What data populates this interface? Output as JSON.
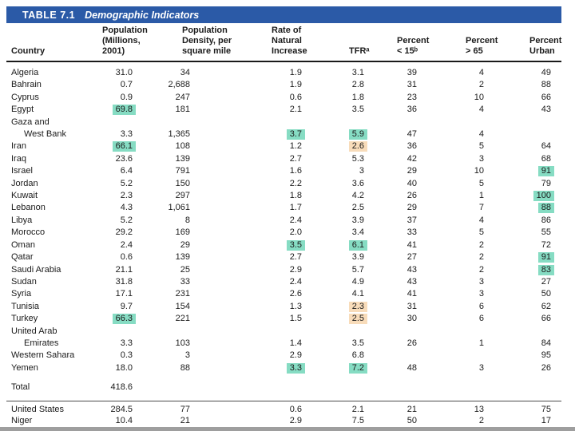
{
  "title_bar": {
    "label": "TABLE 7.1",
    "title": "Demographic Indicators"
  },
  "columns": [
    {
      "label": "Country"
    },
    {
      "label": "Population\n(Millions,\n2001)"
    },
    {
      "label": "Population\nDensity, per\nsquare mile"
    },
    {
      "label": "Rate of\nNatural\nIncrease"
    },
    {
      "label": "TFRᵃ"
    },
    {
      "label": "Percent\n< 15ᵇ"
    },
    {
      "label": "Percent\n> 65"
    },
    {
      "label": "Percent\nUrban"
    }
  ],
  "rows": [
    {
      "country": "Algeria",
      "cells": [
        "31.0",
        "34",
        "1.9",
        "3.1",
        "39",
        "4",
        "49"
      ]
    },
    {
      "country": "Bahrain",
      "cells": [
        "0.7",
        "2,688",
        "1.9",
        "2.8",
        "31",
        "2",
        "88"
      ]
    },
    {
      "country": "Cyprus",
      "cells": [
        "0.9",
        "247",
        "0.6",
        "1.8",
        "23",
        "10",
        "66"
      ]
    },
    {
      "country": "Egypt",
      "cells": [
        {
          "v": "69.8",
          "hl": "teal"
        },
        "181",
        "2.1",
        "3.5",
        "36",
        "4",
        "43"
      ]
    },
    {
      "country": "Gaza and",
      "cells": null
    },
    {
      "country": "West Bank",
      "indent": true,
      "cells": [
        "3.3",
        "1,365",
        {
          "v": "3.7",
          "hl": "teal"
        },
        {
          "v": "5.9",
          "hl": "teal"
        },
        "47",
        "4",
        ""
      ]
    },
    {
      "country": "Iran",
      "cells": [
        {
          "v": "66.1",
          "hl": "teal"
        },
        "108",
        "1.2",
        {
          "v": "2.6",
          "hl": "orange"
        },
        "36",
        "5",
        "64"
      ]
    },
    {
      "country": "Iraq",
      "cells": [
        "23.6",
        "139",
        "2.7",
        "5.3",
        "42",
        "3",
        "68"
      ]
    },
    {
      "country": "Israel",
      "cells": [
        "6.4",
        "791",
        "1.6",
        "3",
        "29",
        "10",
        {
          "v": "91",
          "hl": "teal"
        }
      ]
    },
    {
      "country": "Jordan",
      "cells": [
        "5.2",
        "150",
        "2.2",
        "3.6",
        "40",
        "5",
        "79"
      ]
    },
    {
      "country": "Kuwait",
      "cells": [
        "2.3",
        "297",
        "1.8",
        "4.2",
        "26",
        "1",
        {
          "v": "100",
          "hl": "teal"
        }
      ]
    },
    {
      "country": "Lebanon",
      "cells": [
        "4.3",
        "1,061",
        "1.7",
        "2.5",
        "29",
        "7",
        {
          "v": "88",
          "hl": "teal"
        }
      ]
    },
    {
      "country": "Libya",
      "cells": [
        "5.2",
        "8",
        "2.4",
        "3.9",
        "37",
        "4",
        "86"
      ]
    },
    {
      "country": "Morocco",
      "cells": [
        "29.2",
        "169",
        "2.0",
        "3.4",
        "33",
        "5",
        "55"
      ]
    },
    {
      "country": "Oman",
      "cells": [
        "2.4",
        "29",
        {
          "v": "3.5",
          "hl": "teal"
        },
        {
          "v": "6.1",
          "hl": "teal"
        },
        "41",
        "2",
        "72"
      ]
    },
    {
      "country": "Qatar",
      "cells": [
        "0.6",
        "139",
        "2.7",
        "3.9",
        "27",
        "2",
        {
          "v": "91",
          "hl": "teal"
        }
      ]
    },
    {
      "country": "Saudi Arabia",
      "cells": [
        "21.1",
        "25",
        "2.9",
        "5.7",
        "43",
        "2",
        {
          "v": "83",
          "hl": "teal"
        }
      ]
    },
    {
      "country": "Sudan",
      "cells": [
        "31.8",
        "33",
        "2.4",
        "4.9",
        "43",
        "3",
        "27"
      ]
    },
    {
      "country": "Syria",
      "cells": [
        "17.1",
        "231",
        "2.6",
        "4.1",
        "41",
        "3",
        "50"
      ]
    },
    {
      "country": "Tunisia",
      "cells": [
        "9.7",
        "154",
        "1.3",
        {
          "v": "2.3",
          "hl": "orange"
        },
        "31",
        "6",
        "62"
      ]
    },
    {
      "country": "Turkey",
      "cells": [
        {
          "v": "66.3",
          "hl": "teal"
        },
        "221",
        "1.5",
        {
          "v": "2.5",
          "hl": "orange"
        },
        "30",
        "6",
        "66"
      ]
    },
    {
      "country": "United Arab",
      "cells": null
    },
    {
      "country": "Emirates",
      "indent": true,
      "cells": [
        "3.3",
        "103",
        "1.4",
        "3.5",
        "26",
        "1",
        "84"
      ]
    },
    {
      "country": "Western Sahara",
      "cells": [
        "0.3",
        "3",
        "2.9",
        "6.8",
        "",
        "",
        "95"
      ]
    },
    {
      "country": "Yemen",
      "cells": [
        "18.0",
        "88",
        {
          "v": "3.3",
          "hl": "teal"
        },
        {
          "v": "7.2",
          "hl": "teal"
        },
        "48",
        "3",
        "26"
      ]
    }
  ],
  "total_row": {
    "country": "Total",
    "cells": [
      "418.6",
      "",
      "",
      "",
      "",
      "",
      ""
    ]
  },
  "comparison_rows": [
    {
      "country": "United States",
      "cells": [
        "284.5",
        "77",
        "0.6",
        "2.1",
        "21",
        "13",
        "75"
      ]
    },
    {
      "country": "Niger",
      "cells": [
        "10.4",
        "21",
        "2.9",
        "7.5",
        "50",
        "2",
        "17"
      ]
    }
  ],
  "colors": {
    "header_bar_blue": "#2b5aa7",
    "highlight_teal": "#86dcc3",
    "highlight_orange": "#f8dcba",
    "title_text": "#ffffff",
    "body_text": "#1b1b1b",
    "page_bg": "#ffffff",
    "bottom_edge_grey": "#9e9e9e"
  }
}
